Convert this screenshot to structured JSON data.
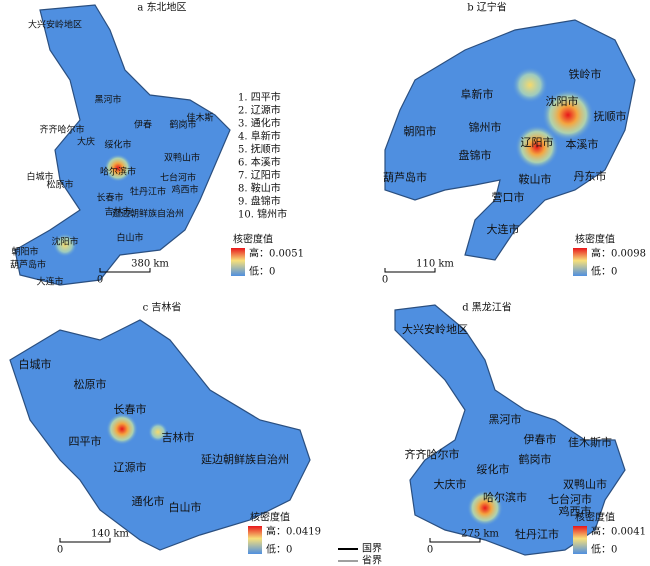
{
  "panels": [
    {
      "title": "a 东北地区",
      "labels": [
        "大兴安岭地区",
        "黑河市",
        "齐齐哈尔市",
        "伊春",
        "鹤岗市",
        "佳木斯",
        "大庆",
        "绥化市",
        "双鸭山市",
        "七台河市",
        "哈尔滨市",
        "鸡西市",
        "白城市",
        "松原市",
        "长春市",
        "吉林市",
        "牡丹江市",
        "延边朝鲜族自治州",
        "白山市",
        "沈阳市",
        "朝阳市",
        "葫芦岛市",
        "大连市"
      ],
      "list": [
        "1. 四平市",
        "2. 辽源市",
        "3. 通化市",
        "4. 阜新市",
        "5. 抚顺市",
        "6. 本溪市",
        "7. 辽阳市",
        "8. 鞍山市",
        "9. 盘锦市",
        "10. 锦州市"
      ],
      "legend": {
        "title": "核密度值",
        "high": "高：0.0051",
        "low": "低：0"
      },
      "scale": {
        "start": "0",
        "end": "380 km"
      }
    },
    {
      "title": "b 辽宁省",
      "labels": [
        "铁岭市",
        "阜新市",
        "沈阳市",
        "抚顺市",
        "朝阳市",
        "锦州市",
        "辽阳市",
        "本溪市",
        "盘锦市",
        "鞍山市",
        "葫芦岛市",
        "丹东市",
        "营口市",
        "大连市"
      ],
      "legend": {
        "title": "核密度值",
        "high": "高：0.0098",
        "low": "低：0"
      },
      "scale": {
        "start": "0",
        "end": "110 km"
      }
    },
    {
      "title": "c 吉林省",
      "labels": [
        "白城市",
        "松原市",
        "长春市",
        "吉林市",
        "四平市",
        "辽源市",
        "延边朝鲜族自治州",
        "通化市",
        "白山市"
      ],
      "legend": {
        "title": "核密度值",
        "high": "高：0.0419",
        "low": "低：0"
      },
      "scale": {
        "start": "0",
        "end": "140 km"
      }
    },
    {
      "title": "d 黑龙江省",
      "labels": [
        "大兴安岭地区",
        "黑河市",
        "伊春市",
        "齐齐哈尔市",
        "绥化市",
        "鹤岗市",
        "佳木斯市",
        "大庆市",
        "哈尔滨市",
        "双鸭山市",
        "七台河市",
        "鸡西市",
        "牡丹江市"
      ],
      "legend": {
        "title": "核密度值",
        "high": "高：0.0041",
        "low": "低：0"
      },
      "scale": {
        "start": "0",
        "end": "275 km"
      }
    }
  ],
  "boundary_legend": {
    "national": "国界",
    "provincial": "省界"
  }
}
